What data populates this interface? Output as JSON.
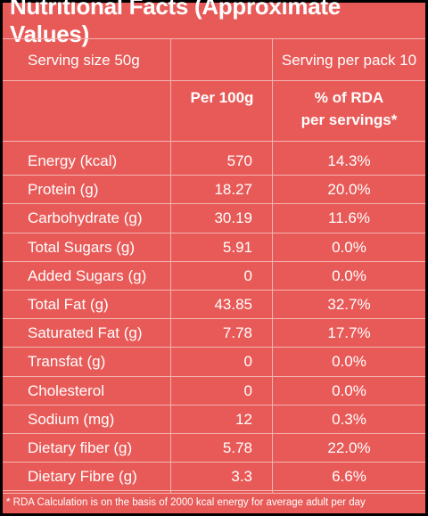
{
  "title": "Nutritional Facts (Approximate Values)",
  "header": {
    "serving_size": "Serving size 50g",
    "serving_per_pack": "Serving per pack 10",
    "per_100g": "Per 100g",
    "rda_line1": "% of RDA",
    "rda_line2": "per servings*"
  },
  "rows": [
    {
      "name": "Energy (kcal)",
      "per100g": "570",
      "rda": "14.3%"
    },
    {
      "name": "Protein (g)",
      "per100g": "18.27",
      "rda": "20.0%"
    },
    {
      "name": "Carbohydrate (g)",
      "per100g": "30.19",
      "rda": "11.6%"
    },
    {
      "name": "Total Sugars (g)",
      "per100g": "5.91",
      "rda": "0.0%"
    },
    {
      "name": "Added Sugars (g)",
      "per100g": "0",
      "rda": "0.0%"
    },
    {
      "name": "Total Fat (g)",
      "per100g": "43.85",
      "rda": "32.7%"
    },
    {
      "name": "Saturated Fat (g)",
      "per100g": "7.78",
      "rda": "17.7%"
    },
    {
      "name": "Transfat (g)",
      "per100g": "0",
      "rda": "0.0%"
    },
    {
      "name": "Cholesterol",
      "per100g": "0",
      "rda": "0.0%"
    },
    {
      "name": "Sodium (mg)",
      "per100g": "12",
      "rda": "0.3%"
    },
    {
      "name": "Dietary fiber (g)",
      "per100g": "5.78",
      "rda": "22.0%"
    },
    {
      "name": "Dietary Fibre (g)",
      "per100g": "3.3",
      "rda": "6.6%"
    }
  ],
  "footnote": "* RDA Calculation is on the basis of 2000 kcal energy for average adult per day",
  "colors": {
    "panel": "#e85a57",
    "border": "#000000",
    "lines": "#f3b4b1",
    "text": "#ffffff"
  }
}
